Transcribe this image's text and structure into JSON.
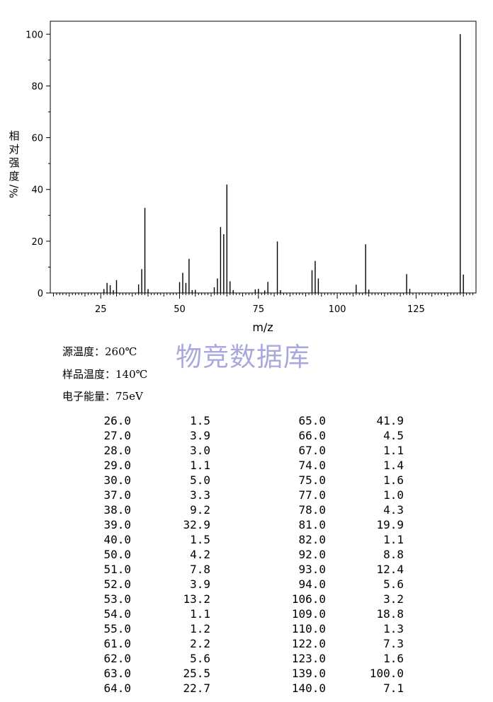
{
  "chart_data": {
    "type": "bar",
    "xlabel": "m/z",
    "ylabel": [
      "相",
      "对",
      "强",
      "度",
      "%/"
    ],
    "xlim": [
      9,
      144
    ],
    "ylim": [
      0,
      105
    ],
    "xticks": [
      25,
      50,
      75,
      100,
      125
    ],
    "yticks": [
      0,
      20,
      40,
      60,
      80,
      100
    ],
    "grid": false,
    "series": [
      {
        "x": [
          26.0,
          27.0,
          28.0,
          29.0,
          30.0,
          37.0,
          38.0,
          39.0,
          40.0,
          50.0,
          51.0,
          52.0,
          53.0,
          54.0,
          55.0,
          61.0,
          62.0,
          63.0,
          64.0,
          65.0,
          66.0,
          67.0,
          74.0,
          75.0,
          77.0,
          78.0,
          81.0,
          82.0,
          92.0,
          93.0,
          94.0,
          106.0,
          109.0,
          110.0,
          122.0,
          123.0,
          139.0,
          140.0
        ],
        "values": [
          1.5,
          3.9,
          3.0,
          1.1,
          5.0,
          3.3,
          9.2,
          32.9,
          1.5,
          4.2,
          7.8,
          3.9,
          13.2,
          1.1,
          1.2,
          2.2,
          5.6,
          25.5,
          22.7,
          41.9,
          4.5,
          1.1,
          1.4,
          1.6,
          1.0,
          4.3,
          19.9,
          1.1,
          8.8,
          12.4,
          5.6,
          3.2,
          18.8,
          1.3,
          7.3,
          1.6,
          100.0,
          7.1
        ]
      }
    ]
  },
  "watermark": "物竞数据库",
  "conditions": [
    {
      "label": "源温度：",
      "value": "260℃"
    },
    {
      "label": "样品温度：",
      "value": "140℃"
    },
    {
      "label": "电子能量：",
      "value": "75eV"
    }
  ],
  "peak_table": {
    "left": [
      [
        "26.0",
        "1.5"
      ],
      [
        "27.0",
        "3.9"
      ],
      [
        "28.0",
        "3.0"
      ],
      [
        "29.0",
        "1.1"
      ],
      [
        "30.0",
        "5.0"
      ],
      [
        "37.0",
        "3.3"
      ],
      [
        "38.0",
        "9.2"
      ],
      [
        "39.0",
        "32.9"
      ],
      [
        "40.0",
        "1.5"
      ],
      [
        "50.0",
        "4.2"
      ],
      [
        "51.0",
        "7.8"
      ],
      [
        "52.0",
        "3.9"
      ],
      [
        "53.0",
        "13.2"
      ],
      [
        "54.0",
        "1.1"
      ],
      [
        "55.0",
        "1.2"
      ],
      [
        "61.0",
        "2.2"
      ],
      [
        "62.0",
        "5.6"
      ],
      [
        "63.0",
        "25.5"
      ],
      [
        "64.0",
        "22.7"
      ]
    ],
    "right": [
      [
        "65.0",
        "41.9"
      ],
      [
        "66.0",
        "4.5"
      ],
      [
        "67.0",
        "1.1"
      ],
      [
        "74.0",
        "1.4"
      ],
      [
        "75.0",
        "1.6"
      ],
      [
        "77.0",
        "1.0"
      ],
      [
        "78.0",
        "4.3"
      ],
      [
        "81.0",
        "19.9"
      ],
      [
        "82.0",
        "1.1"
      ],
      [
        "92.0",
        "8.8"
      ],
      [
        "93.0",
        "12.4"
      ],
      [
        "94.0",
        "5.6"
      ],
      [
        "106.0",
        "3.2"
      ],
      [
        "109.0",
        "18.8"
      ],
      [
        "110.0",
        "1.3"
      ],
      [
        "122.0",
        "7.3"
      ],
      [
        "123.0",
        "1.6"
      ],
      [
        "139.0",
        "100.0"
      ],
      [
        "140.0",
        "7.1"
      ]
    ]
  }
}
